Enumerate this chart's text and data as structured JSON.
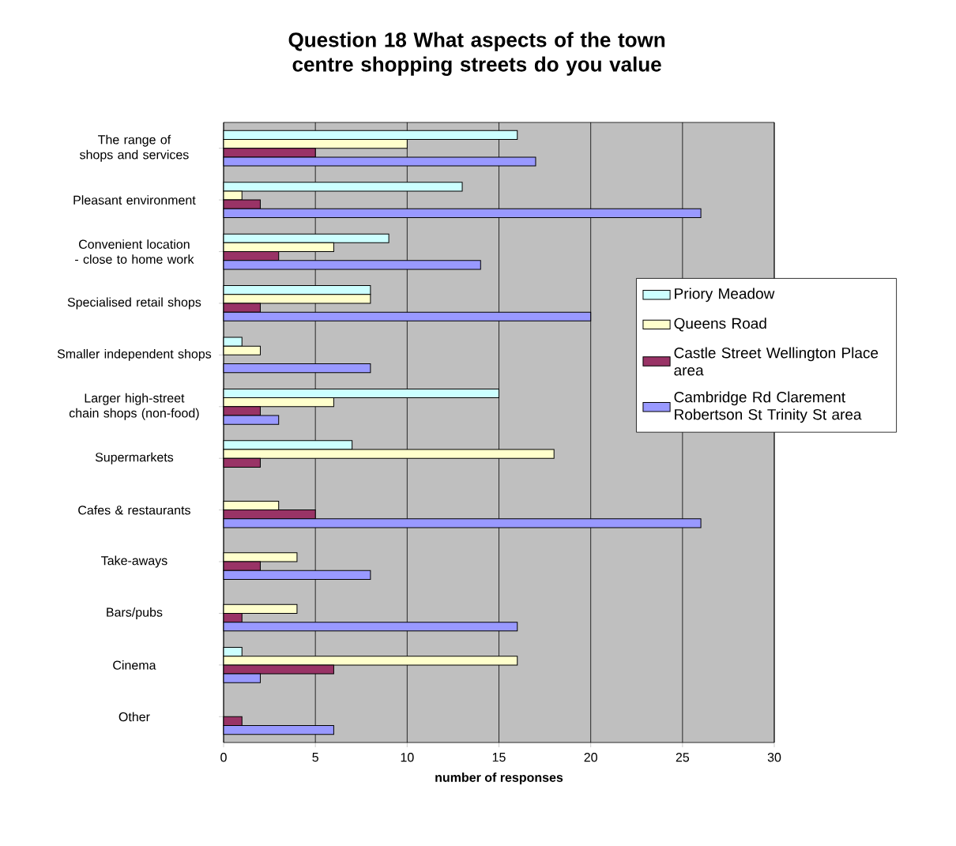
{
  "chart_data": {
    "type": "bar",
    "orientation": "horizontal",
    "title": "Question 18 What aspects of the town centre shopping streets do you value",
    "xlabel": "number of responses",
    "categories": [
      "The range of shops and services",
      "Pleasant environment",
      "Convenient location - close to home work",
      "Specialised retail shops",
      "Smaller independent shops",
      "Larger high-street chain shops (non-food)",
      "Supermarkets",
      "Cafes & restaurants",
      "Take-aways",
      "Bars/pubs",
      "Cinema",
      "Other"
    ],
    "series": [
      {
        "name": "Priory Meadow",
        "color": "#ccffff",
        "values": [
          16,
          13,
          9,
          8,
          1,
          15,
          7,
          0,
          0,
          0,
          1,
          0
        ]
      },
      {
        "name": "Queens Road",
        "color": "#ffffcc",
        "values": [
          10,
          1,
          6,
          8,
          2,
          6,
          18,
          3,
          4,
          4,
          16,
          0
        ]
      },
      {
        "name": "Castle Street Wellington Place area",
        "color": "#993366",
        "values": [
          5,
          2,
          3,
          2,
          0,
          2,
          2,
          5,
          2,
          1,
          6,
          1
        ]
      },
      {
        "name": "Cambridge Rd Clarement Robertson St Trinity St area",
        "color": "#9999ff",
        "values": [
          17,
          26,
          14,
          20,
          8,
          3,
          0,
          26,
          8,
          16,
          2,
          6
        ]
      }
    ],
    "xlim": [
      0,
      30
    ],
    "xticks": [
      0,
      5,
      10,
      15,
      20,
      25,
      30
    ],
    "grid": "x",
    "legend": "right"
  }
}
